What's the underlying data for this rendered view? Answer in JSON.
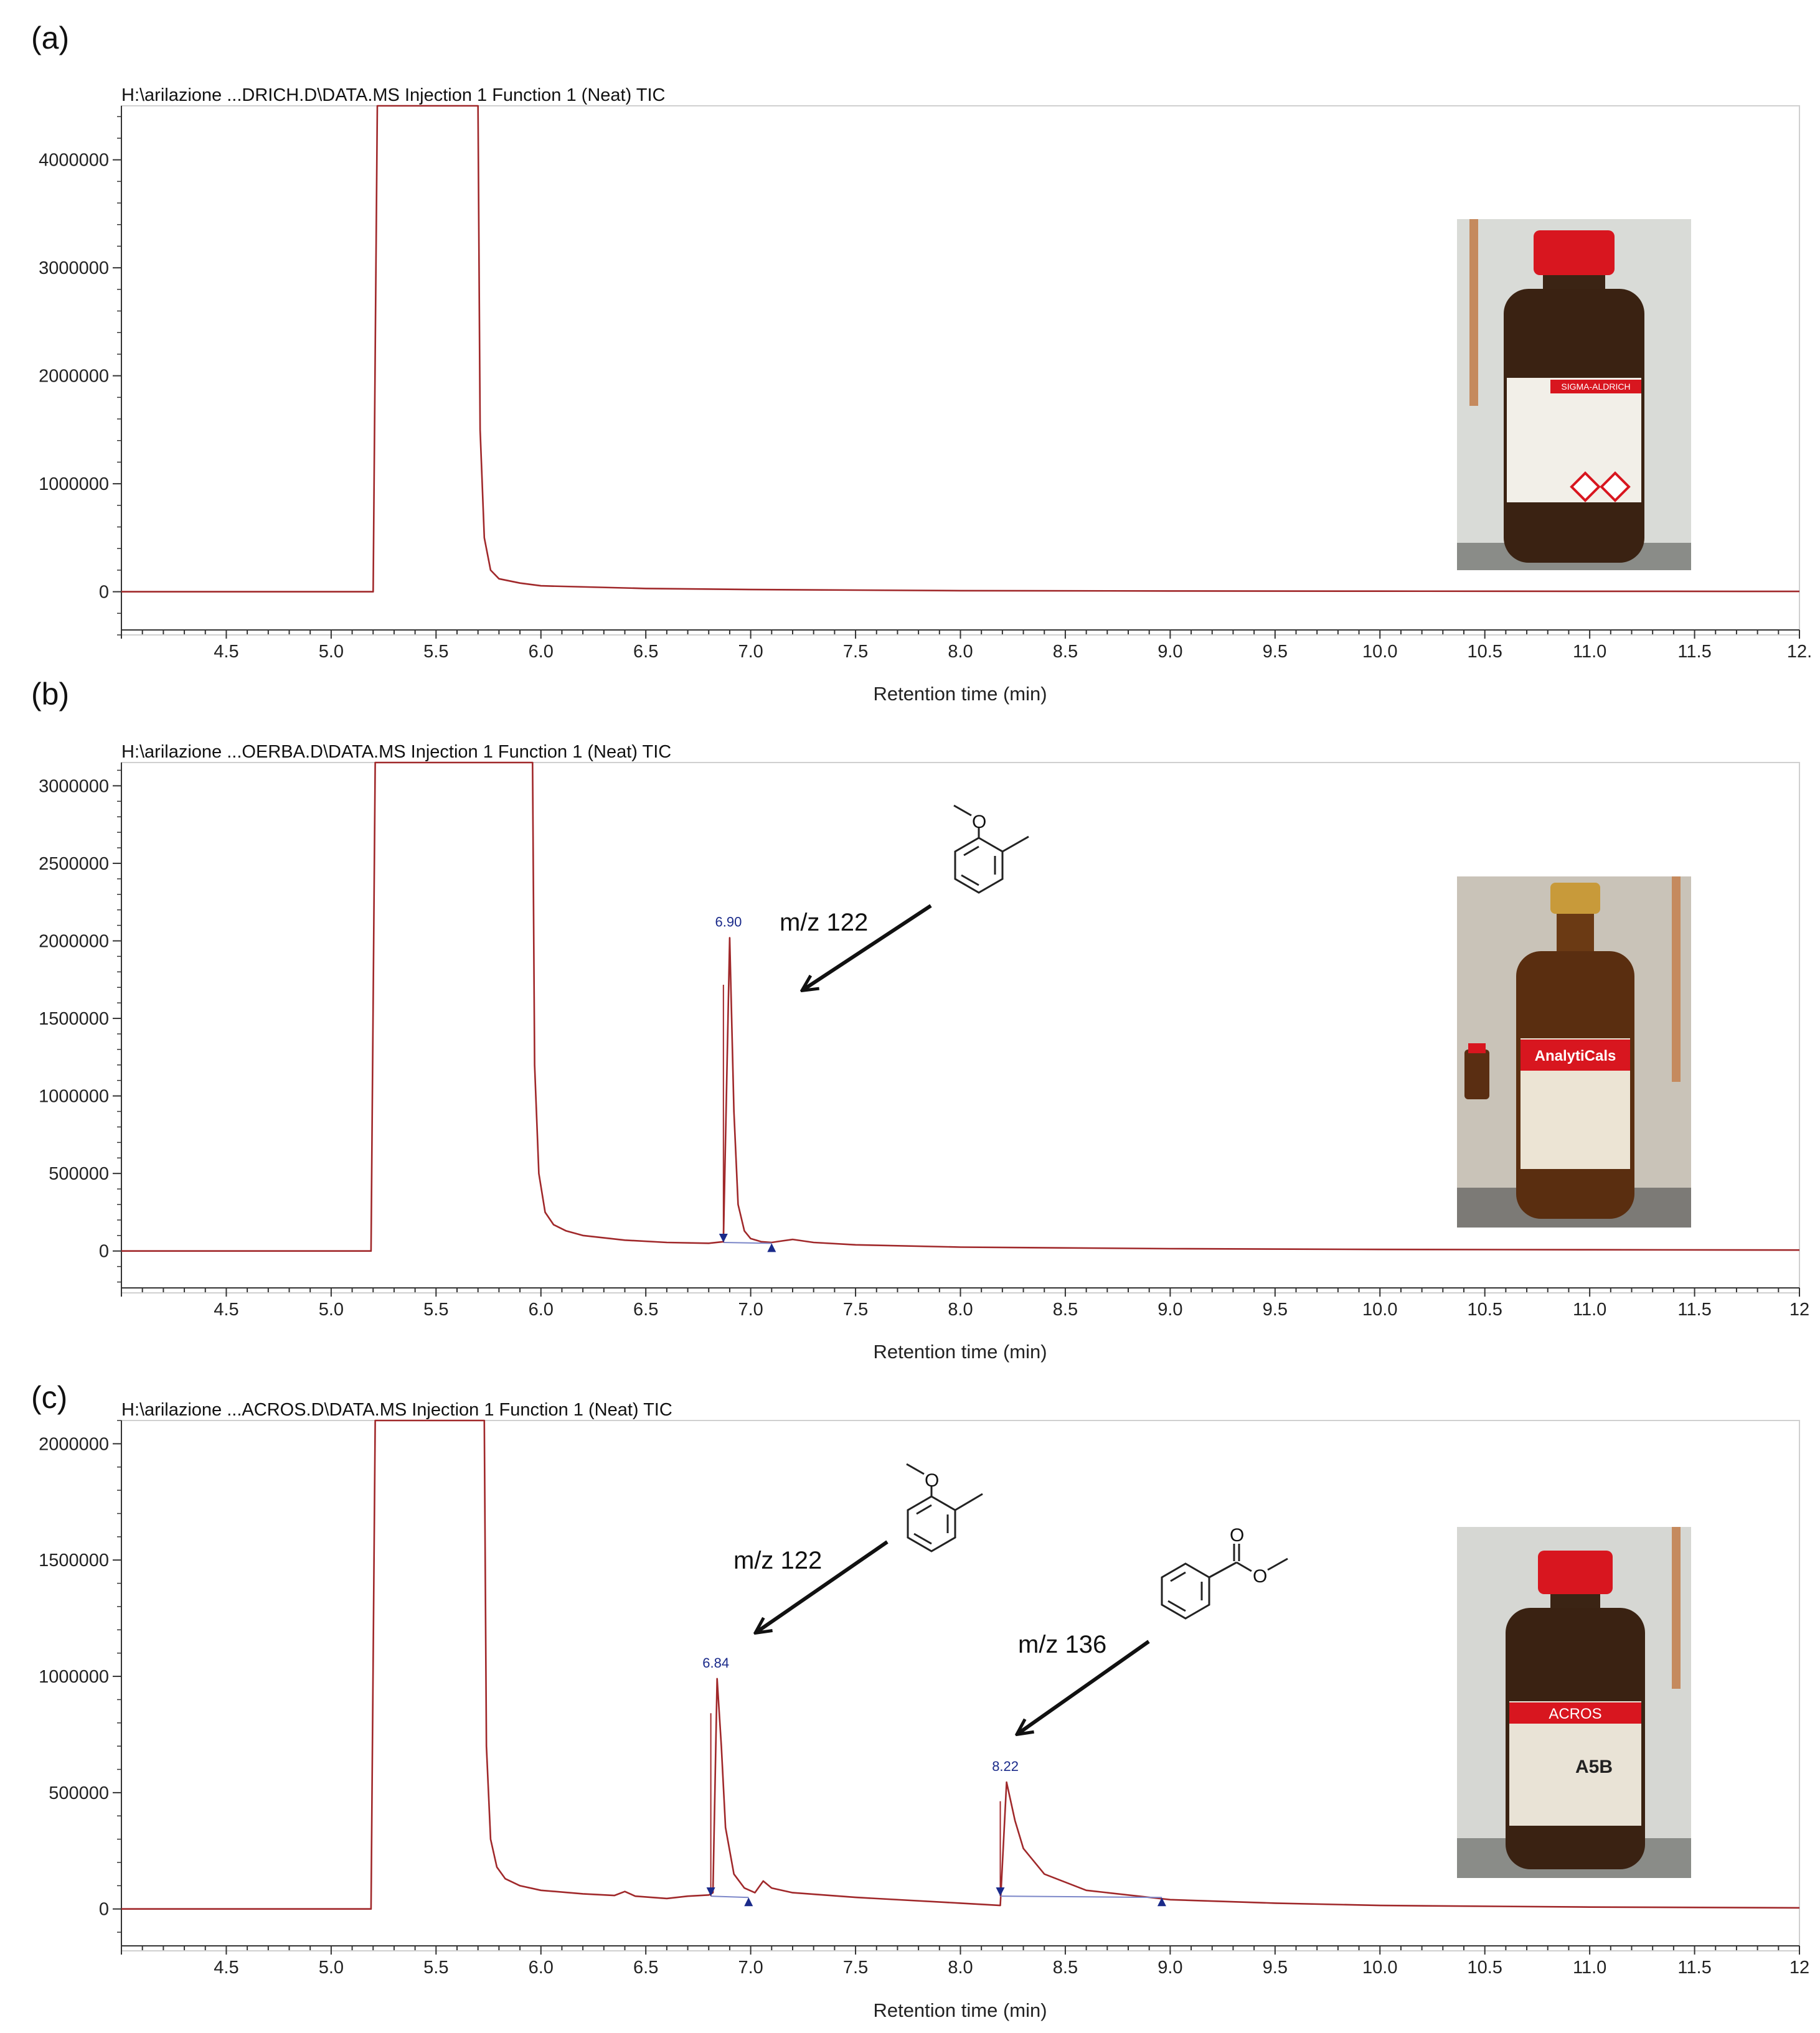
{
  "chart_data": [
    {
      "type": "line",
      "panel": "(a)",
      "title": "H:\\arilazione ...DRICH.D\\DATA.MS Injection 1 Function 1 (Neat) TIC",
      "xlabel": "Retention time (min)",
      "ylabel": "",
      "xlim": [
        4.0,
        12.0
      ],
      "ylim": [
        -400000,
        4500000
      ],
      "xticks": [
        "4.5",
        "5.0",
        "5.5",
        "6.0",
        "6.5",
        "7.0",
        "7.5",
        "8.0",
        "8.5",
        "9.0",
        "9.5",
        "10.0",
        "10.5",
        "11.0",
        "11.5",
        "12."
      ],
      "yticks": [
        "0",
        "1000000",
        "2000000",
        "3000000",
        "4000000"
      ],
      "grid": false,
      "series": [
        {
          "x": [
            4.0,
            5.2,
            5.22,
            5.23,
            5.7,
            5.71,
            5.73,
            5.76,
            5.8,
            5.9,
            6.0,
            6.5,
            7.0,
            7.5,
            8.0,
            9.0,
            10.0,
            11.0,
            12.0
          ],
          "y": [
            0,
            0,
            4500000,
            4500000,
            4500000,
            1500000,
            500000,
            200000,
            120000,
            80000,
            55000,
            30000,
            20000,
            15000,
            10000,
            7000,
            5000,
            4000,
            3000
          ],
          "color": "#a0282a"
        }
      ],
      "peaks": [],
      "annotations": [],
      "photo": {
        "label": "SIGMA-ALDRICH",
        "cap_color": "#d8161f",
        "label_color": "#d8161f"
      }
    },
    {
      "type": "line",
      "panel": "(b)",
      "title": "H:\\arilazione ...OERBA.D\\DATA.MS Injection 1 Function 1 (Neat) TIC",
      "xlabel": "Retention time (min)",
      "ylabel": "",
      "xlim": [
        4.0,
        12.0
      ],
      "ylim": [
        -270000,
        3150000
      ],
      "xticks": [
        "4.5",
        "5.0",
        "5.5",
        "6.0",
        "6.5",
        "7.0",
        "7.5",
        "8.0",
        "8.5",
        "9.0",
        "9.5",
        "10.0",
        "10.5",
        "11.0",
        "11.5",
        "12"
      ],
      "yticks": [
        "0",
        "500000",
        "1000000",
        "1500000",
        "2000000",
        "2500000",
        "3000000"
      ],
      "grid": false,
      "series": [
        {
          "x": [
            4.0,
            5.19,
            5.21,
            5.22,
            5.96,
            5.97,
            5.99,
            6.02,
            6.06,
            6.12,
            6.2,
            6.4,
            6.6,
            6.8,
            6.87,
            6.9,
            6.92,
            6.94,
            6.97,
            7.0,
            7.05,
            7.1,
            7.15,
            7.2,
            7.3,
            7.5,
            8.0,
            9.0,
            10.0,
            11.0,
            12.0
          ],
          "y": [
            0,
            0,
            3150000,
            3150000,
            3150000,
            1200000,
            500000,
            250000,
            170000,
            130000,
            100000,
            70000,
            55000,
            50000,
            60000,
            2020000,
            900000,
            300000,
            130000,
            80000,
            60000,
            55000,
            65000,
            75000,
            55000,
            40000,
            25000,
            15000,
            10000,
            8000,
            6000
          ],
          "color": "#a0282a"
        }
      ],
      "peaks": [
        {
          "label": "6.90",
          "x": 6.9,
          "y": 2020000,
          "start": 6.87,
          "end": 7.1
        }
      ],
      "annotations": [
        {
          "mz": "m/z 122",
          "atom": "O"
        }
      ],
      "photo": {
        "label": "AnalytiCals",
        "cap_color": "#c89a3a",
        "label_color": "#d8161f"
      }
    },
    {
      "type": "line",
      "panel": "(c)",
      "title": "H:\\arilazione ...ACROS.D\\DATA.MS Injection 1 Function 1 (Neat) TIC",
      "xlabel": "Retention time (min)",
      "ylabel": "",
      "xlim": [
        4.0,
        12.0
      ],
      "ylim": [
        -180000,
        2100000
      ],
      "xticks": [
        "4.5",
        "5.0",
        "5.5",
        "6.0",
        "6.5",
        "7.0",
        "7.5",
        "8.0",
        "8.5",
        "9.0",
        "9.5",
        "10.0",
        "10.5",
        "11.0",
        "11.5",
        "12"
      ],
      "yticks": [
        "0",
        "500000",
        "1000000",
        "1500000",
        "2000000"
      ],
      "grid": false,
      "series": [
        {
          "x": [
            4.0,
            5.19,
            5.21,
            5.22,
            5.73,
            5.74,
            5.76,
            5.79,
            5.83,
            5.9,
            6.0,
            6.2,
            6.35,
            6.4,
            6.45,
            6.6,
            6.7,
            6.8,
            6.82,
            6.84,
            6.86,
            6.88,
            6.92,
            6.97,
            7.02,
            7.06,
            7.1,
            7.2,
            7.5,
            8.0,
            8.19,
            8.22,
            8.26,
            8.3,
            8.4,
            8.6,
            9.0,
            9.5,
            10.0,
            11.0,
            12.0
          ],
          "y": [
            0,
            0,
            2100000,
            2100000,
            2100000,
            700000,
            300000,
            180000,
            130000,
            100000,
            80000,
            65000,
            58000,
            75000,
            55000,
            45000,
            55000,
            60000,
            70000,
            990000,
            700000,
            350000,
            150000,
            90000,
            70000,
            120000,
            90000,
            70000,
            50000,
            25000,
            15000,
            545000,
            380000,
            260000,
            150000,
            80000,
            40000,
            25000,
            15000,
            8000,
            5000
          ],
          "color": "#a0282a"
        }
      ],
      "peaks": [
        {
          "label": "6.84",
          "x": 6.84,
          "y": 990000,
          "start": 6.81,
          "end": 6.99
        },
        {
          "label": "8.22",
          "x": 8.22,
          "y": 545000,
          "start": 8.19,
          "end": 8.96
        }
      ],
      "annotations": [
        {
          "mz": "m/z 122",
          "atom": "O"
        },
        {
          "mz": "m/z 136",
          "atom": "O",
          "atom2": "O"
        }
      ],
      "photo": {
        "label": "ACROS",
        "text": "A5B",
        "cap_color": "#d8161f",
        "label_color": "#d8161f"
      }
    }
  ]
}
